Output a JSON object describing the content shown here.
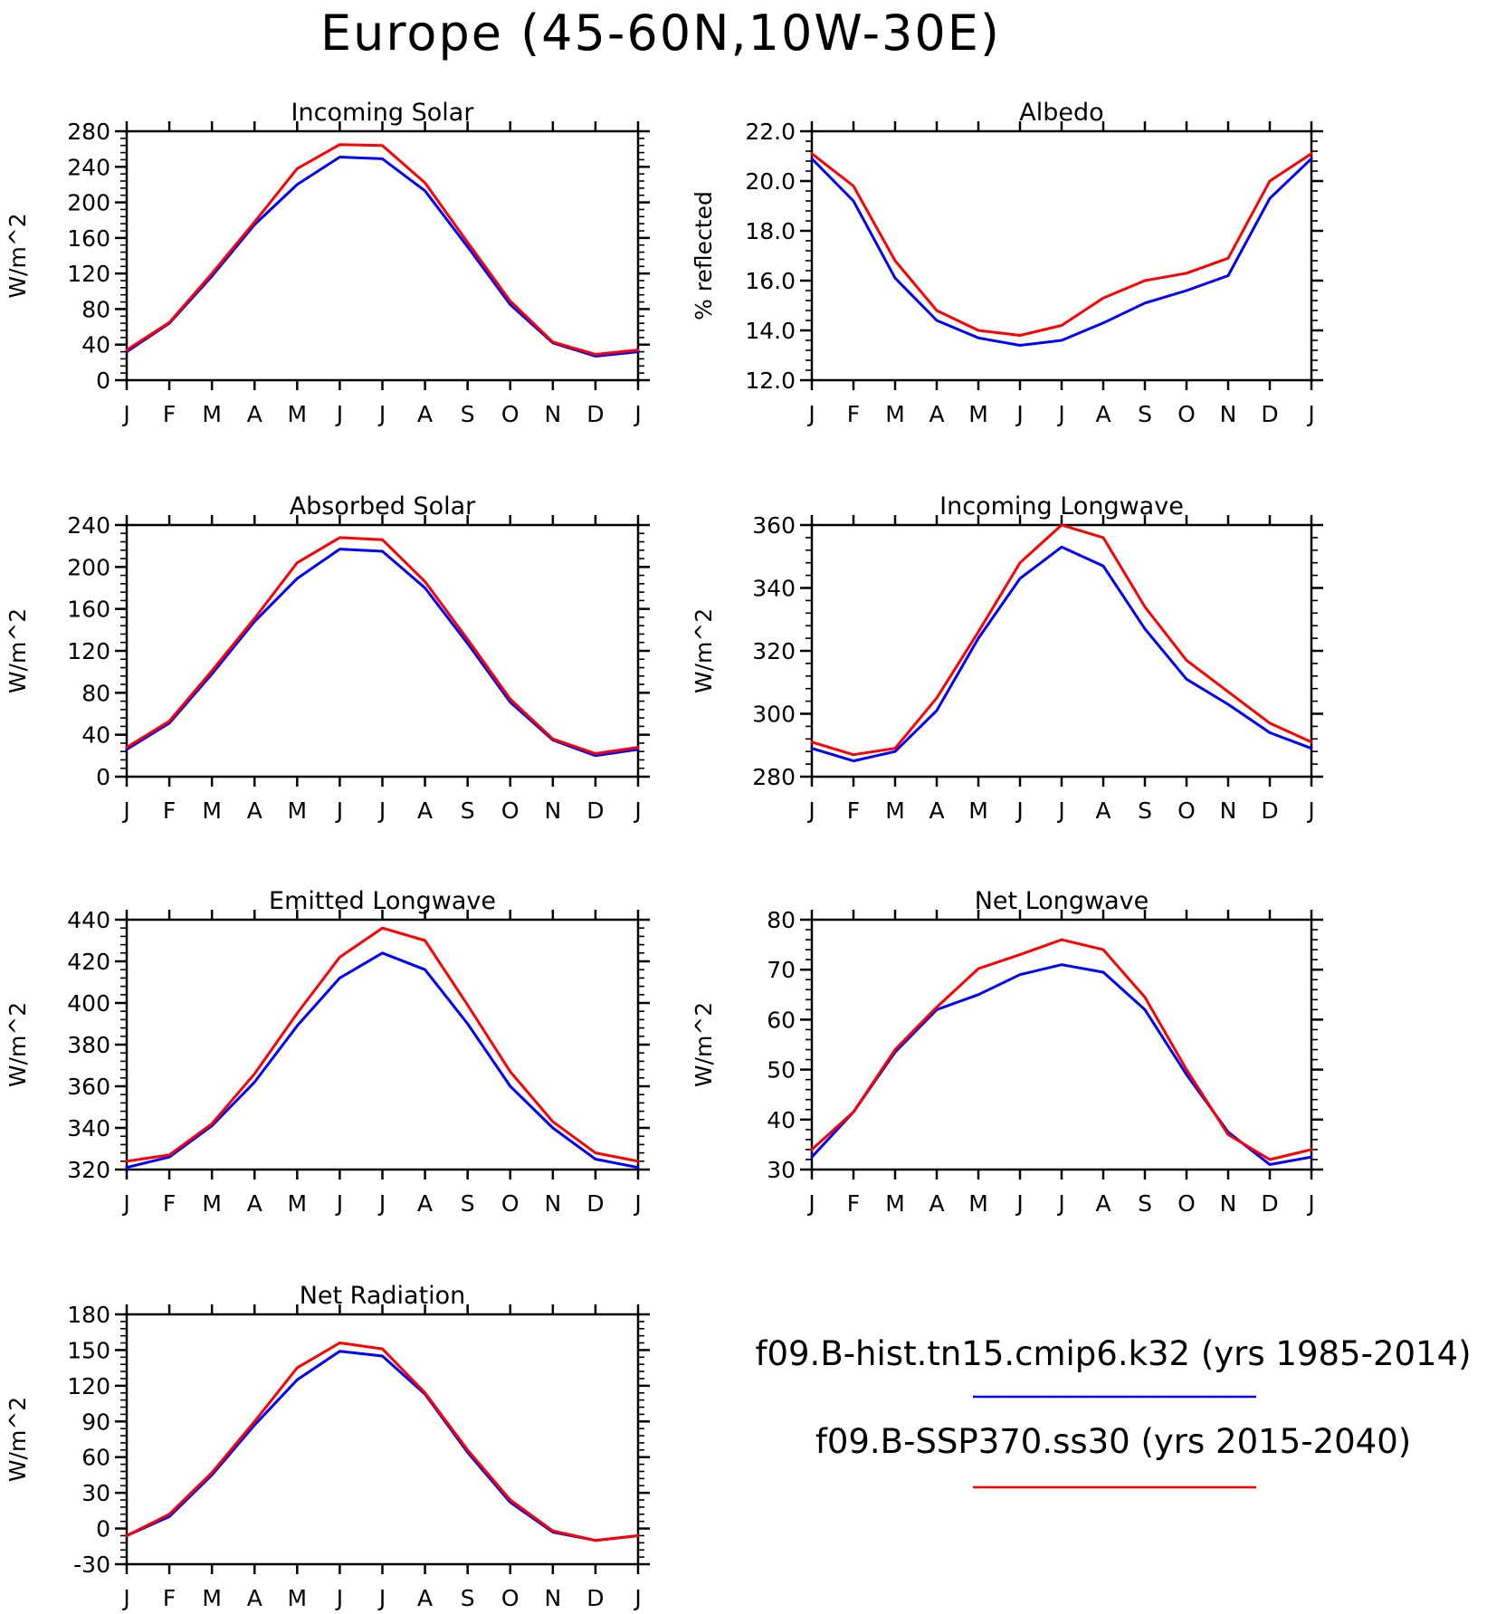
{
  "title": "Europe (45-60N,10W-30E)",
  "colors": {
    "hist": "#0000ff",
    "ssp": "#ff0000"
  },
  "legend": [
    {
      "label": "f09.B-hist.tn15.cmip6.k32 (yrs 1985-2014)",
      "color": "#0000ff"
    },
    {
      "label": "f09.B-SSP370.ss30 (yrs 2015-2040)",
      "color": "#ff0000"
    }
  ],
  "months": [
    "J",
    "F",
    "M",
    "A",
    "M",
    "J",
    "J",
    "A",
    "S",
    "O",
    "N",
    "D",
    "J"
  ],
  "chart_data": [
    {
      "type": "line",
      "title": "Incoming Solar",
      "ylabel": "W/m^2",
      "x": [
        "J",
        "F",
        "M",
        "A",
        "M",
        "J",
        "J",
        "A",
        "S",
        "O",
        "N",
        "D",
        "J"
      ],
      "ylim": [
        0,
        280
      ],
      "yticks": [
        0,
        40,
        80,
        120,
        160,
        200,
        240,
        280
      ],
      "decimals": 0,
      "series": [
        {
          "values": [
            32,
            64,
            117,
            175,
            220,
            251,
            249,
            213,
            150,
            85,
            42,
            27,
            32
          ]
        },
        {
          "values": [
            34,
            65,
            120,
            178,
            238,
            265,
            264,
            222,
            155,
            89,
            43,
            29,
            34
          ]
        }
      ]
    },
    {
      "type": "line",
      "title": "Albedo",
      "ylabel": "% reflected",
      "x": [
        "J",
        "F",
        "M",
        "A",
        "M",
        "J",
        "J",
        "A",
        "S",
        "O",
        "N",
        "D",
        "J"
      ],
      "ylim": [
        12,
        22
      ],
      "yticks": [
        12,
        14,
        16,
        18,
        20,
        22
      ],
      "decimals": 1,
      "series": [
        {
          "values": [
            20.9,
            19.2,
            16.1,
            14.4,
            13.7,
            13.4,
            13.6,
            14.3,
            15.1,
            15.6,
            16.2,
            19.3,
            20.9
          ]
        },
        {
          "values": [
            21.1,
            19.8,
            16.8,
            14.8,
            14.0,
            13.8,
            14.2,
            15.3,
            16.0,
            16.3,
            16.9,
            20.0,
            21.1
          ]
        }
      ]
    },
    {
      "type": "line",
      "title": "Absorbed Solar",
      "ylabel": "W/m^2",
      "x": [
        "J",
        "F",
        "M",
        "A",
        "M",
        "J",
        "J",
        "A",
        "S",
        "O",
        "N",
        "D",
        "J"
      ],
      "ylim": [
        0,
        240
      ],
      "yticks": [
        0,
        40,
        80,
        120,
        160,
        200,
        240
      ],
      "decimals": 0,
      "series": [
        {
          "values": [
            26,
            51,
            98,
            148,
            189,
            217,
            215,
            180,
            127,
            71,
            35,
            20,
            26
          ]
        },
        {
          "values": [
            28,
            53,
            101,
            151,
            204,
            228,
            226,
            186,
            131,
            74,
            36,
            22,
            28
          ]
        }
      ]
    },
    {
      "type": "line",
      "title": "Incoming Longwave",
      "ylabel": "W/m^2",
      "x": [
        "J",
        "F",
        "M",
        "A",
        "M",
        "J",
        "J",
        "A",
        "S",
        "O",
        "N",
        "D",
        "J"
      ],
      "ylim": [
        280,
        360
      ],
      "yticks": [
        280,
        300,
        320,
        340,
        360
      ],
      "decimals": 0,
      "series": [
        {
          "values": [
            289,
            285,
            288,
            301,
            324,
            343,
            353,
            347,
            327,
            311,
            303,
            294,
            289
          ]
        },
        {
          "values": [
            291,
            287,
            289,
            305,
            326,
            348,
            360,
            356,
            334,
            317,
            307,
            297,
            291
          ]
        }
      ]
    },
    {
      "type": "line",
      "title": "Emitted Longwave",
      "ylabel": "W/m^2",
      "x": [
        "J",
        "F",
        "M",
        "A",
        "M",
        "J",
        "J",
        "A",
        "S",
        "O",
        "N",
        "D",
        "J"
      ],
      "ylim": [
        320,
        440
      ],
      "yticks": [
        320,
        340,
        360,
        380,
        400,
        420,
        440
      ],
      "decimals": 0,
      "series": [
        {
          "values": [
            321,
            326,
            341,
            362,
            389,
            412,
            424,
            416,
            390,
            360,
            340,
            325,
            321
          ]
        },
        {
          "values": [
            324,
            327,
            342,
            366,
            395,
            422,
            436,
            430,
            399,
            367,
            343,
            328,
            324
          ]
        }
      ]
    },
    {
      "type": "line",
      "title": "Net Longwave",
      "ylabel": "W/m^2",
      "x": [
        "J",
        "F",
        "M",
        "A",
        "M",
        "J",
        "J",
        "A",
        "S",
        "O",
        "N",
        "D",
        "J"
      ],
      "ylim": [
        30,
        80
      ],
      "yticks": [
        30,
        40,
        50,
        60,
        70,
        80
      ],
      "decimals": 0,
      "series": [
        {
          "values": [
            32.5,
            41.5,
            53.5,
            62,
            65,
            69,
            71,
            69.5,
            62,
            49,
            37.5,
            31,
            32.5
          ]
        },
        {
          "values": [
            34,
            41.5,
            54,
            62.5,
            70.2,
            73,
            76,
            74,
            64.5,
            50,
            37,
            32,
            34
          ]
        }
      ]
    },
    {
      "type": "line",
      "title": "Net Radiation",
      "ylabel": "W/m^2",
      "x": [
        "J",
        "F",
        "M",
        "A",
        "M",
        "J",
        "J",
        "A",
        "S",
        "O",
        "N",
        "D",
        "J"
      ],
      "ylim": [
        -30,
        180
      ],
      "yticks": [
        -30,
        0,
        30,
        60,
        90,
        120,
        150,
        180
      ],
      "decimals": 0,
      "series": [
        {
          "values": [
            -6,
            10,
            45,
            87,
            125,
            149,
            145,
            113,
            64,
            22,
            -3,
            -10,
            -6
          ]
        },
        {
          "values": [
            -6,
            12,
            47,
            90,
            135,
            156,
            151,
            114,
            66,
            24,
            -2,
            -10,
            -6
          ]
        }
      ]
    }
  ]
}
